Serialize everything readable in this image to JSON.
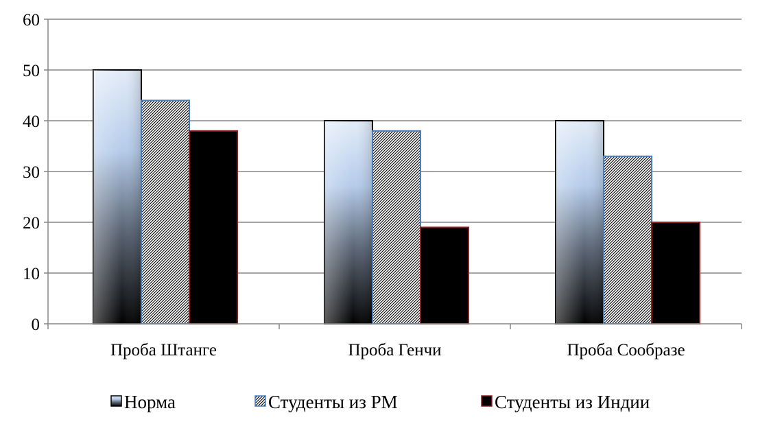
{
  "chart_data": {
    "type": "bar",
    "title": "",
    "xlabel": "",
    "ylabel": "",
    "ylim": [
      0,
      60
    ],
    "yticks": [
      0,
      10,
      20,
      30,
      40,
      50,
      60
    ],
    "grid": true,
    "legend_position": "bottom",
    "categories": [
      "Проба Штанге",
      "Проба Генчи",
      "Проба Сообразе"
    ],
    "series": [
      {
        "name": "Норма",
        "values": [
          50,
          40,
          40
        ]
      },
      {
        "name": "Студенты из РМ",
        "values": [
          44,
          38,
          33
        ]
      },
      {
        "name": "Студенты из Индии",
        "values": [
          38,
          19,
          20
        ]
      }
    ]
  },
  "colors": {
    "grid": "#868686",
    "axis": "#868686",
    "norma_outline": "#000000",
    "norma_light": "#e3ecf8",
    "norma_mid": "#b4cbea",
    "norma_dark": "#000000",
    "rm_outline": "#4a7ebb",
    "rm_hatch": "#000000",
    "india_fill": "#000000",
    "india_outline": "#8b2020"
  }
}
